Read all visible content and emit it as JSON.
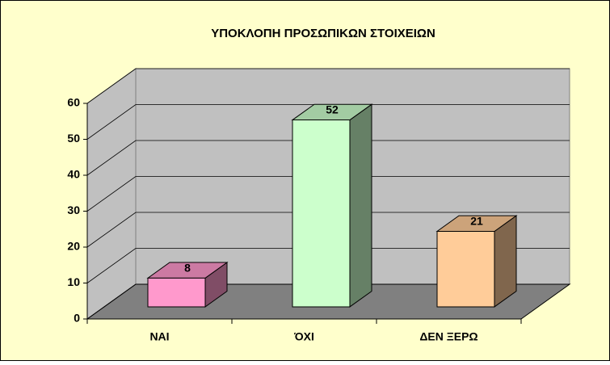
{
  "chart_data": {
    "type": "bar3d",
    "title": "ΥΠΟΚΛΟΠΗ ΠΡΟΣΩΠΙΚΩΝ ΣΤΟΙΧΕΙΩΝ",
    "categories": [
      "ΝΑΙ",
      "ΌΧΙ",
      "ΔΕΝ ΞΕΡΩ"
    ],
    "values": [
      8,
      52,
      21
    ],
    "colors": [
      "#FF99CC",
      "#CCFFCC",
      "#FFCC99"
    ],
    "ylim": [
      0,
      60
    ],
    "yticks": [
      0,
      10,
      20,
      30,
      40,
      50,
      60
    ],
    "grid": true
  }
}
